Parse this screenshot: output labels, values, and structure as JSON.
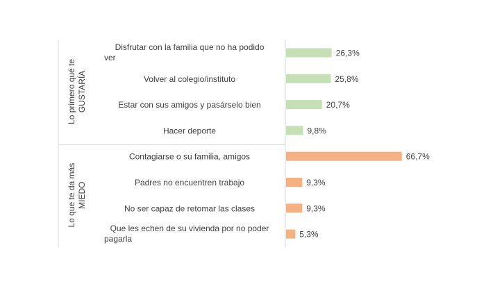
{
  "chart_data": {
    "type": "bar",
    "orientation": "horizontal",
    "value_suffix": "%",
    "xlim": [
      0,
      70
    ],
    "grid": false,
    "groups": [
      {
        "label_lines": [
          "Lo primero qué te",
          "GUSTARÍA"
        ],
        "color": "#c5e0b4",
        "categories": [
          "Disfrutar con la familia que no ha podido ver",
          "Volver al colegio/instituto",
          "Estar con sus amigos y pasárselo bien",
          "Hacer deporte"
        ],
        "category_lines": [
          [
            "Disfrutar con la familia que no ha podido",
            "ver"
          ],
          [
            "Volver al colegio/instituto"
          ],
          [
            "Estar con sus amigos y pasárselo bien"
          ],
          [
            "Hacer deporte"
          ]
        ],
        "values": [
          26.3,
          25.8,
          20.7,
          9.8
        ],
        "value_labels": [
          "26,3%",
          "25,8%",
          "20,7%",
          "9,8%"
        ]
      },
      {
        "label_lines": [
          "Lo que te da más",
          "MIEDO"
        ],
        "color": "#f4b183",
        "categories": [
          "Contagiarse o su familia, amigos",
          "Padres no encuentren trabajo",
          "No ser capaz de retomar las clases",
          "Que les echen de su vivienda por no poder pagarla"
        ],
        "category_lines": [
          [
            "Contagiarse o su familia, amigos"
          ],
          [
            "Padres no encuentren trabajo"
          ],
          [
            "No ser capaz de retomar las clases"
          ],
          [
            "Que les echen de su vivienda por no poder",
            "pagarla"
          ]
        ],
        "values": [
          66.7,
          9.3,
          9.3,
          5.3
        ],
        "value_labels": [
          "66,7%",
          "9,3%",
          "9,3%",
          "5,3%"
        ]
      }
    ]
  }
}
